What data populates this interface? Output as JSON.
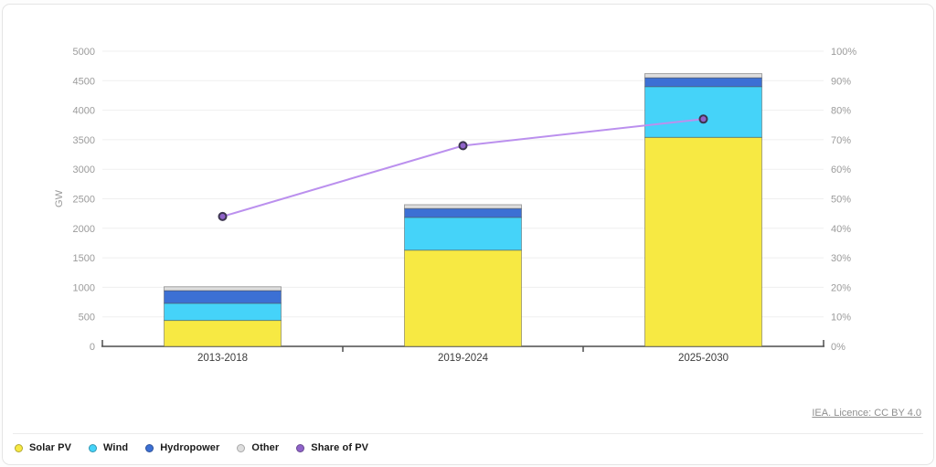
{
  "card": {
    "attribution": "IEA. Licence: CC BY 4.0"
  },
  "chart_data": {
    "type": "bar",
    "subtype": "stacked-bars-with-line",
    "categories": [
      "2013-2018",
      "2019-2024",
      "2025-2030"
    ],
    "series": [
      {
        "name": "Solar PV",
        "type": "bar",
        "color": "#f7e943",
        "values": [
          440,
          1630,
          3540
        ]
      },
      {
        "name": "Wind",
        "type": "bar",
        "color": "#45d3f9",
        "values": [
          290,
          555,
          860
        ]
      },
      {
        "name": "Hydropower",
        "type": "bar",
        "color": "#3c70d4",
        "values": [
          215,
          150,
          150
        ]
      },
      {
        "name": "Other",
        "type": "bar",
        "color": "#dedede",
        "values": [
          65,
          65,
          70
        ]
      },
      {
        "name": "Share of PV",
        "type": "line",
        "axis": "right",
        "line_color": "#bb90ee",
        "marker_fill": "#8f63c9",
        "marker_stroke": "#3c3550",
        "values_pct": [
          44,
          68,
          77
        ]
      }
    ],
    "left_axis": {
      "label": "GW",
      "min": 0,
      "max": 5000,
      "step": 500,
      "ticks": [
        "0",
        "500",
        "1000",
        "1500",
        "2000",
        "2500",
        "3000",
        "3500",
        "4000",
        "4500",
        "5000"
      ]
    },
    "right_axis": {
      "min": 0,
      "max": 100,
      "step": 10,
      "suffix": "%",
      "ticks": [
        "0%",
        "10%",
        "20%",
        "30%",
        "40%",
        "50%",
        "60%",
        "70%",
        "80%",
        "90%",
        "100%"
      ]
    },
    "grid": true,
    "legend_position": "bottom-left",
    "colors": {
      "gridline": "#efefef",
      "axis_line": "#4d4d4d",
      "axis_label": "#9b9b9b",
      "category_label": "#3d3d3d",
      "segment_stroke": "rgba(70,70,70,0.45)",
      "other_legend_ring": "#a8a8a8"
    }
  }
}
